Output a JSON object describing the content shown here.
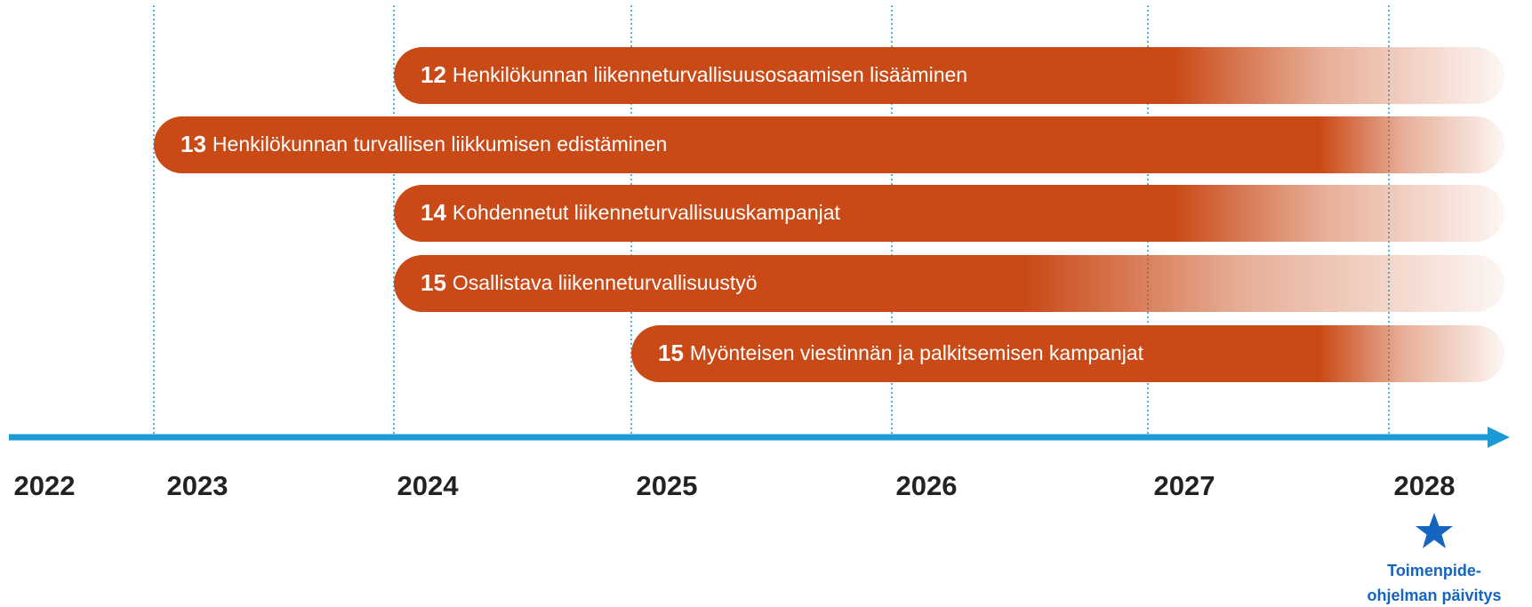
{
  "years": [
    "2022",
    "2023",
    "2024",
    "2025",
    "2026",
    "2027",
    "2028"
  ],
  "bars": [
    {
      "number": "12",
      "label": "Henkilökunnan liikenneturvallisuusosaamisen lisääminen"
    },
    {
      "number": "13",
      "label": "Henkilökunnan turvallisen liikkumisen edistäminen"
    },
    {
      "number": "14",
      "label": "Kohdennetut liikenneturvallisuuskampanjat"
    },
    {
      "number": "15",
      "label": "Osallistava liikenneturvallisuustyö"
    },
    {
      "number": "15",
      "label": "Myönteisen viestinnän ja palkitsemisen kampanjat"
    }
  ],
  "milestone": {
    "lines": [
      "Toimenpide-",
      "ohjelman päivitys"
    ]
  }
}
